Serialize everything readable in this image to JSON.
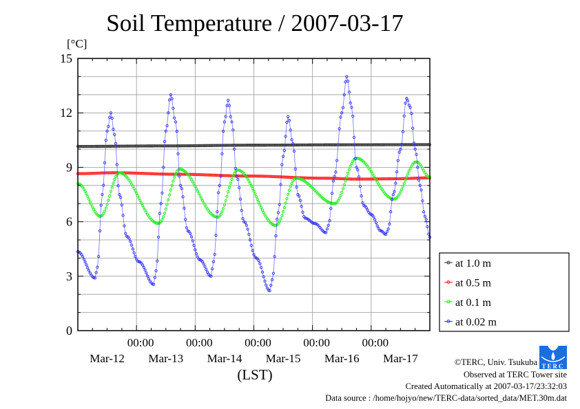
{
  "chart_data": {
    "type": "line",
    "title": "Soil Temperature / 2007-03-17",
    "ylabel": "[°C]",
    "xlabel": "(LST)",
    "x_units": "hours since 2007-03-12 00:00 LST",
    "xlim": [
      0,
      144
    ],
    "ylim": [
      0,
      15
    ],
    "yticks": [
      0,
      3,
      6,
      9,
      12,
      15
    ],
    "ytick_labels": [
      "0",
      "3",
      "6",
      "9",
      "12",
      "15"
    ],
    "xticks": [
      24,
      48,
      72,
      96,
      120
    ],
    "xtick_labels": [
      "00:00",
      "00:00",
      "00:00",
      "00:00",
      "00:00"
    ],
    "date_labels": [
      "Mar-12",
      "Mar-13",
      "Mar-14",
      "Mar-15",
      "Mar-16",
      "Mar-17"
    ],
    "grid": true,
    "legend_position": "right, outside, lower",
    "sampling_interval_hours": 0.5,
    "series": [
      {
        "name": "at 1.0 m",
        "color": "#333333",
        "points": [
          [
            0,
            10.15
          ],
          [
            36,
            10.18
          ],
          [
            72,
            10.22
          ],
          [
            108,
            10.24
          ],
          [
            144,
            10.25
          ]
        ]
      },
      {
        "name": "at 0.5 m",
        "color": "#ff2020",
        "points": [
          [
            0,
            8.65
          ],
          [
            15,
            8.7
          ],
          [
            40,
            8.62
          ],
          [
            70,
            8.52
          ],
          [
            100,
            8.4
          ],
          [
            115,
            8.35
          ],
          [
            130,
            8.37
          ],
          [
            144,
            8.42
          ]
        ]
      },
      {
        "name": "at 0.1 m",
        "color": "#22ee22",
        "points": [
          [
            0,
            8.1
          ],
          [
            9.3,
            6.3
          ],
          [
            17,
            8.7
          ],
          [
            33,
            5.9
          ],
          [
            41.7,
            8.9
          ],
          [
            57.2,
            6.25
          ],
          [
            65.4,
            8.85
          ],
          [
            81,
            5.8
          ],
          [
            89.3,
            8.4
          ],
          [
            105,
            7.0
          ],
          [
            114,
            9.5
          ],
          [
            129.4,
            7.25
          ],
          [
            138.5,
            9.3
          ],
          [
            144,
            8.45
          ]
        ]
      },
      {
        "name": "at 0.02 m",
        "color": "#3333ff",
        "points": [
          [
            0,
            4.35
          ],
          [
            7,
            2.9
          ],
          [
            8,
            3.5
          ],
          [
            10,
            7.5
          ],
          [
            12,
            11.0
          ],
          [
            13.5,
            12.0
          ],
          [
            15,
            10.8
          ],
          [
            17,
            7.5
          ],
          [
            20,
            5.2
          ],
          [
            25,
            3.8
          ],
          [
            31,
            2.55
          ],
          [
            32,
            3.3
          ],
          [
            34,
            7.0
          ],
          [
            36,
            11.0
          ],
          [
            38,
            13.0
          ],
          [
            40,
            11.5
          ],
          [
            42,
            8.0
          ],
          [
            45,
            5.5
          ],
          [
            50,
            3.9
          ],
          [
            54.5,
            3.0
          ],
          [
            55.5,
            3.8
          ],
          [
            58,
            8.0
          ],
          [
            60,
            11.5
          ],
          [
            61.5,
            12.7
          ],
          [
            63,
            11.5
          ],
          [
            65,
            8.5
          ],
          [
            68,
            6.0
          ],
          [
            73,
            4.0
          ],
          [
            78.5,
            2.2
          ],
          [
            79.5,
            2.8
          ],
          [
            82,
            6.5
          ],
          [
            84,
            9.6
          ],
          [
            86,
            11.8
          ],
          [
            88,
            10.3
          ],
          [
            90,
            7.5
          ],
          [
            93,
            6.2
          ],
          [
            97,
            5.9
          ],
          [
            101.5,
            5.4
          ],
          [
            102.5,
            5.8
          ],
          [
            105,
            8.5
          ],
          [
            108,
            12.0
          ],
          [
            110,
            14.0
          ],
          [
            112,
            12.3
          ],
          [
            114,
            9.0
          ],
          [
            117,
            6.9
          ],
          [
            120,
            6.4
          ],
          [
            124,
            5.5
          ],
          [
            126,
            5.3
          ],
          [
            127,
            5.6
          ],
          [
            129,
            7.5
          ],
          [
            132,
            10.0
          ],
          [
            134.5,
            12.8
          ],
          [
            136,
            12.3
          ],
          [
            138,
            10.0
          ],
          [
            140,
            8.0
          ],
          [
            142,
            6.3
          ],
          [
            144,
            5.15
          ]
        ]
      }
    ]
  },
  "footer": {
    "copyright": "©TERC, Univ. Tsukuba",
    "observed": "Observed at TERC Tower site",
    "created": "Created Automatically at 2007-03-17/23:32:03",
    "source": "Data source : /home/hojyo/new/TERC-data/sorted_data/MET.30m.dat",
    "logo_text": "TERC"
  }
}
